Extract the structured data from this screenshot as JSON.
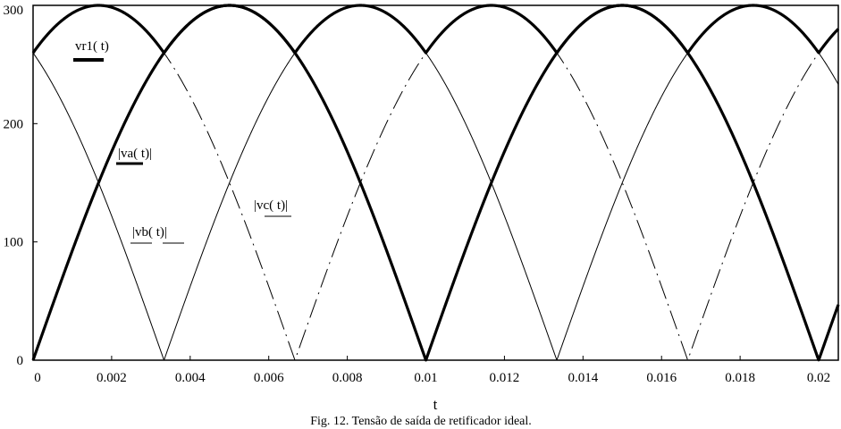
{
  "chart_data": {
    "type": "line",
    "title": "",
    "xlabel": "t",
    "ylabel": "",
    "xlim": [
      0,
      0.0205
    ],
    "ylim": [
      0,
      300
    ],
    "x_ticks": [
      0,
      0.002,
      0.004,
      0.006,
      0.008,
      0.01,
      0.012,
      0.014,
      0.016,
      0.018,
      0.02
    ],
    "x_tick_labels": [
      "0",
      "0.002",
      "0.004",
      "0.006",
      "0.008",
      "0.01",
      "0.012",
      "0.014",
      "0.016",
      "0.018",
      "0.02"
    ],
    "y_ticks": [
      0,
      100,
      200,
      300
    ],
    "y_tick_labels": [
      "0",
      "100",
      "200",
      "300"
    ],
    "grid": false,
    "amplitude": 300,
    "frequency_hz": 50,
    "series": [
      {
        "name": "vr1(t)",
        "phase_deg": 0,
        "kind": "rectified_max",
        "style": "thick"
      },
      {
        "name": "|va(t)|",
        "phase_deg": 0,
        "kind": "abs_sine",
        "style": "thick"
      },
      {
        "name": "|vb(t)|",
        "phase_deg": -120,
        "kind": "abs_sine",
        "style": "dash-dot"
      },
      {
        "name": "|vc(t)|",
        "phase_deg": 120,
        "kind": "abs_sine",
        "style": "thin"
      }
    ],
    "legend_labels": {
      "vr1": "vr1( t)",
      "va": "|va( t)|",
      "vb": "|vb( t)|",
      "vc": "|vc( t)|"
    },
    "caption": "Fig. 12. Tensão de saída de retificador ideal."
  }
}
